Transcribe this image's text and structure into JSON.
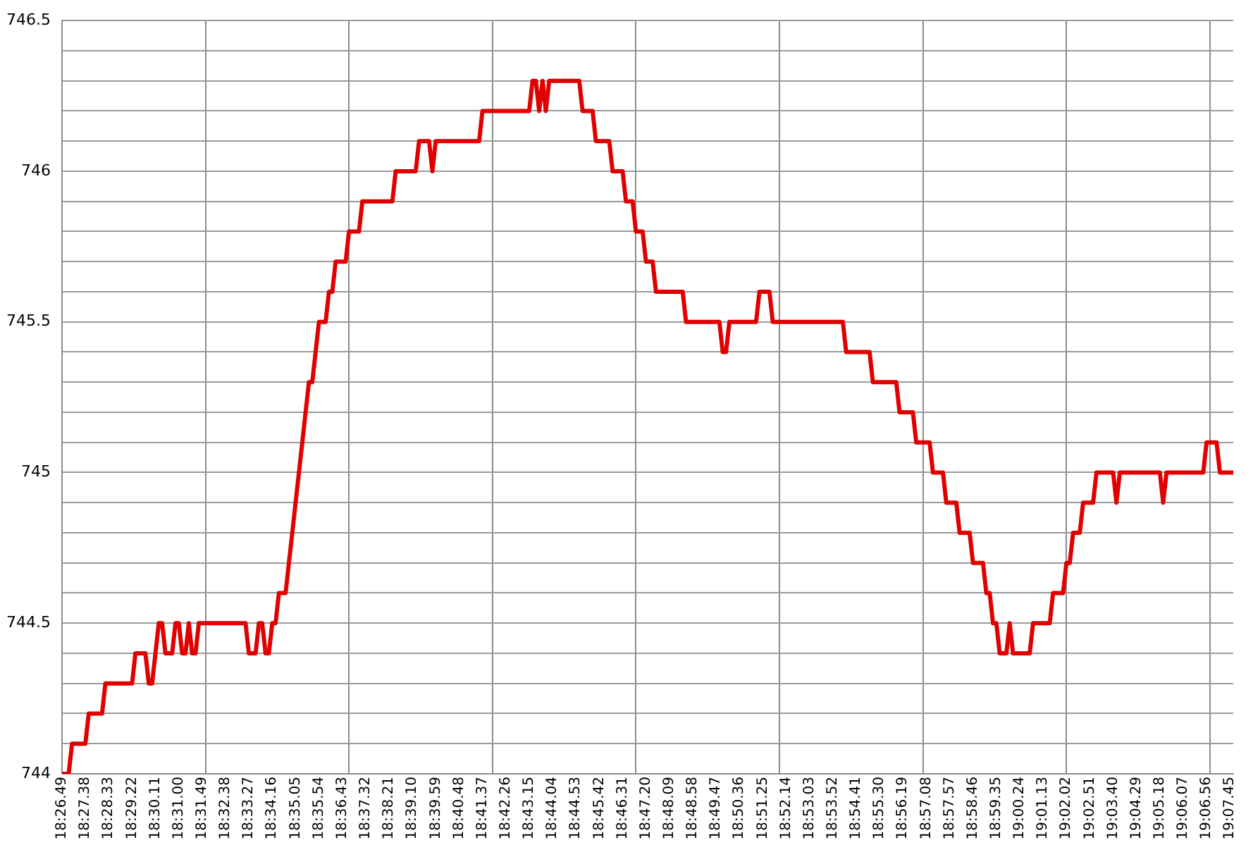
{
  "chart_data": {
    "type": "line",
    "grid": true,
    "legend": false,
    "marker": "none",
    "line_style": "solid",
    "categories": [
      "18:26.49",
      null,
      null,
      null,
      null,
      null,
      null,
      "18:27.38",
      null,
      null,
      null,
      null,
      null,
      null,
      "18:28.33",
      null,
      null,
      null,
      null,
      null,
      null,
      "18:29.22",
      null,
      null,
      null,
      null,
      null,
      null,
      "18:30.11",
      null,
      null,
      null,
      null,
      null,
      null,
      "18:31.00",
      null,
      null,
      null,
      null,
      null,
      null,
      "18:31.49",
      null,
      null,
      null,
      null,
      null,
      null,
      "18:32.38",
      null,
      null,
      null,
      null,
      null,
      null,
      "18:33.27",
      null,
      null,
      null,
      null,
      null,
      null,
      "18:34.16",
      null,
      null,
      null,
      null,
      null,
      null,
      "18:35.05",
      null,
      null,
      null,
      null,
      null,
      null,
      "18:35.54",
      null,
      null,
      null,
      null,
      null,
      null,
      "18:36.43",
      null,
      null,
      null,
      null,
      null,
      null,
      "18:37.32",
      null,
      null,
      null,
      null,
      null,
      null,
      "18:38.21",
      null,
      null,
      null,
      null,
      null,
      null,
      "18:39.10",
      null,
      null,
      null,
      null,
      null,
      null,
      "18:39.59",
      null,
      null,
      null,
      null,
      null,
      null,
      "18:40.48",
      null,
      null,
      null,
      null,
      null,
      null,
      "18:41.37",
      null,
      null,
      null,
      null,
      null,
      null,
      "18:42.26",
      null,
      null,
      null,
      null,
      null,
      null,
      "18:43.15",
      null,
      null,
      null,
      null,
      null,
      null,
      "18:44.04",
      null,
      null,
      null,
      null,
      null,
      null,
      "18:44.53",
      null,
      null,
      null,
      null,
      null,
      null,
      "18:45.42",
      null,
      null,
      null,
      null,
      null,
      null,
      "18:46.31",
      null,
      null,
      null,
      null,
      null,
      null,
      "18:47.20",
      null,
      null,
      null,
      null,
      null,
      null,
      "18:48.09",
      null,
      null,
      null,
      null,
      null,
      null,
      "18:48.58",
      null,
      null,
      null,
      null,
      null,
      null,
      "18:49.47",
      null,
      null,
      null,
      null,
      null,
      null,
      "18:50.36",
      null,
      null,
      null,
      null,
      null,
      null,
      "18:51.25",
      null,
      null,
      null,
      null,
      null,
      null,
      "18:52.14",
      null,
      null,
      null,
      null,
      null,
      null,
      "18:53.03",
      null,
      null,
      null,
      null,
      null,
      null,
      "18:53.52",
      null,
      null,
      null,
      null,
      null,
      null,
      "18:54.41",
      null,
      null,
      null,
      null,
      null,
      null,
      "18:55.30",
      null,
      null,
      null,
      null,
      null,
      null,
      "18:56.19",
      null,
      null,
      null,
      null,
      null,
      null,
      "18:57.08",
      null,
      null,
      null,
      null,
      null,
      null,
      "18:57.57",
      null,
      null,
      null,
      null,
      null,
      null,
      "18:58.46",
      null,
      null,
      null,
      null,
      null,
      null,
      "18:59.35",
      null,
      null,
      null,
      null,
      null,
      null,
      "19:00.24",
      null,
      null,
      null,
      null,
      null,
      null,
      "19:01.13",
      null,
      null,
      null,
      null,
      null,
      null,
      "19:02.02",
      null,
      null,
      null,
      null,
      null,
      null,
      "19:02.51",
      null,
      null,
      null,
      null,
      null,
      null,
      "19:03.40",
      null,
      null,
      null,
      null,
      null,
      null,
      "19:04.29",
      null,
      null,
      null,
      null,
      null,
      null,
      "19:05.18",
      null,
      null,
      null,
      null,
      null,
      null,
      "19:06.07",
      null,
      null,
      null,
      null,
      null,
      null,
      "19:06.56",
      null,
      null,
      null,
      null,
      null,
      null,
      "19:07.45",
      null
    ],
    "ylim": [
      744,
      746.5
    ],
    "yticks": [
      744,
      {
        "value": 744.1,
        "label": null
      },
      {
        "value": 744.2,
        "label": null
      },
      {
        "value": 744.3,
        "label": null
      },
      {
        "value": 744.4,
        "label": null
      },
      744.5,
      {
        "value": 744.6,
        "label": null
      },
      {
        "value": 744.7,
        "label": null
      },
      {
        "value": 744.8,
        "label": null
      },
      {
        "value": 744.9,
        "label": null
      },
      745,
      {
        "value": 745.1,
        "label": null
      },
      {
        "value": 745.2,
        "label": null
      },
      {
        "value": 745.3,
        "label": null
      },
      {
        "value": 745.4,
        "label": null
      },
      745.5,
      {
        "value": 745.6,
        "label": null
      },
      {
        "value": 745.7,
        "label": null
      },
      {
        "value": 745.8,
        "label": null
      },
      {
        "value": 745.9,
        "label": null
      },
      746,
      {
        "value": 746.1,
        "label": null
      },
      {
        "value": 746.2,
        "label": null
      },
      {
        "value": 746.3,
        "label": null
      },
      {
        "value": 746.4,
        "label": null
      },
      746.5
    ],
    "series": [
      {
        "color": "#e00000",
        "values": [
          744,
          744,
          744,
          744.1,
          744.1,
          744.1,
          744.1,
          744.1,
          744.2,
          744.2,
          744.2,
          744.2,
          744.2,
          744.3,
          744.3,
          744.3,
          744.3,
          744.3,
          744.3,
          744.3,
          744.3,
          744.3,
          744.4,
          744.4,
          744.4,
          744.4,
          744.3,
          744.3,
          744.4,
          744.5,
          744.5,
          744.4,
          744.4,
          744.4,
          744.5,
          744.5,
          744.4,
          744.4,
          744.5,
          744.4,
          744.4,
          744.5,
          744.5,
          744.5,
          744.5,
          744.5,
          744.5,
          744.5,
          744.5,
          744.5,
          744.5,
          744.5,
          744.5,
          744.5,
          744.5,
          744.5,
          744.4,
          744.4,
          744.4,
          744.5,
          744.5,
          744.4,
          744.4,
          744.5,
          744.5,
          744.6,
          744.6,
          744.6,
          744.7,
          744.8,
          744.9,
          745,
          745.1,
          745.2,
          745.3,
          745.3,
          745.4,
          745.5,
          745.5,
          745.5,
          745.6,
          745.6,
          745.7,
          745.7,
          745.7,
          745.7,
          745.8,
          745.8,
          745.8,
          745.8,
          745.9,
          745.9,
          745.9,
          745.9,
          745.9,
          745.9,
          745.9,
          745.9,
          745.9,
          745.9,
          746,
          746,
          746,
          746,
          746,
          746,
          746,
          746.1,
          746.1,
          746.1,
          746.1,
          746,
          746.1,
          746.1,
          746.1,
          746.1,
          746.1,
          746.1,
          746.1,
          746.1,
          746.1,
          746.1,
          746.1,
          746.1,
          746.1,
          746.1,
          746.2,
          746.2,
          746.2,
          746.2,
          746.2,
          746.2,
          746.2,
          746.2,
          746.2,
          746.2,
          746.2,
          746.2,
          746.2,
          746.2,
          746.2,
          746.3,
          746.3,
          746.2,
          746.3,
          746.2,
          746.3,
          746.3,
          746.3,
          746.3,
          746.3,
          746.3,
          746.3,
          746.3,
          746.3,
          746.3,
          746.2,
          746.2,
          746.2,
          746.2,
          746.1,
          746.1,
          746.1,
          746.1,
          746.1,
          746,
          746,
          746,
          746,
          745.9,
          745.9,
          745.9,
          745.8,
          745.8,
          745.8,
          745.7,
          745.7,
          745.7,
          745.6,
          745.6,
          745.6,
          745.6,
          745.6,
          745.6,
          745.6,
          745.6,
          745.6,
          745.5,
          745.5,
          745.5,
          745.5,
          745.5,
          745.5,
          745.5,
          745.5,
          745.5,
          745.5,
          745.5,
          745.4,
          745.4,
          745.5,
          745.5,
          745.5,
          745.5,
          745.5,
          745.5,
          745.5,
          745.5,
          745.5,
          745.6,
          745.6,
          745.6,
          745.6,
          745.5,
          745.5,
          745.5,
          745.5,
          745.5,
          745.5,
          745.5,
          745.5,
          745.5,
          745.5,
          745.5,
          745.5,
          745.5,
          745.5,
          745.5,
          745.5,
          745.5,
          745.5,
          745.5,
          745.5,
          745.5,
          745.5,
          745.4,
          745.4,
          745.4,
          745.4,
          745.4,
          745.4,
          745.4,
          745.4,
          745.3,
          745.3,
          745.3,
          745.3,
          745.3,
          745.3,
          745.3,
          745.3,
          745.2,
          745.2,
          745.2,
          745.2,
          745.2,
          745.1,
          745.1,
          745.1,
          745.1,
          745.1,
          745,
          745,
          745,
          745,
          744.9,
          744.9,
          744.9,
          744.9,
          744.8,
          744.8,
          744.8,
          744.8,
          744.7,
          744.7,
          744.7,
          744.7,
          744.6,
          744.6,
          744.5,
          744.5,
          744.4,
          744.4,
          744.4,
          744.5,
          744.4,
          744.4,
          744.4,
          744.4,
          744.4,
          744.4,
          744.5,
          744.5,
          744.5,
          744.5,
          744.5,
          744.5,
          744.6,
          744.6,
          744.6,
          744.6,
          744.7,
          744.7,
          744.8,
          744.8,
          744.8,
          744.9,
          744.9,
          744.9,
          744.9,
          745,
          745,
          745,
          745,
          745,
          745,
          744.9,
          745,
          745,
          745,
          745,
          745,
          745,
          745,
          745,
          745,
          745,
          745,
          745,
          745,
          744.9,
          745,
          745,
          745,
          745,
          745,
          745,
          745,
          745,
          745,
          745,
          745,
          745,
          745.1,
          745.1,
          745.1,
          745.1,
          745,
          745,
          745,
          745,
          745
        ]
      }
    ]
  }
}
